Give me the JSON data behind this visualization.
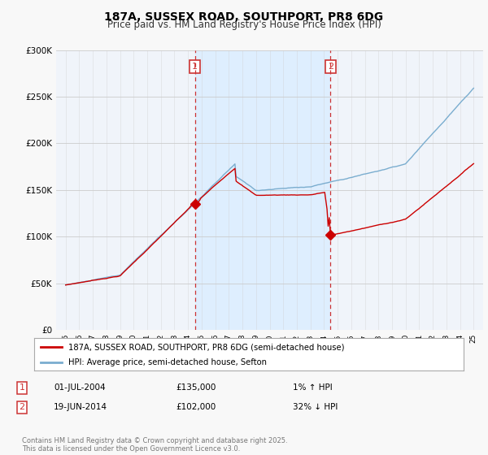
{
  "title_line1": "187A, SUSSEX ROAD, SOUTHPORT, PR8 6DG",
  "title_line2": "Price paid vs. HM Land Registry's House Price Index (HPI)",
  "background_color": "#f8f8f8",
  "plot_bg_color": "#f0f4fa",
  "ylim": [
    0,
    300000
  ],
  "yticks": [
    0,
    50000,
    100000,
    150000,
    200000,
    250000,
    300000
  ],
  "ytick_labels": [
    "£0",
    "£50K",
    "£100K",
    "£150K",
    "£200K",
    "£250K",
    "£300K"
  ],
  "sale1_x": 2004.5,
  "sale1_price": 135000,
  "sale2_x": 2014.47,
  "sale2_price": 102000,
  "legend_line1": "187A, SUSSEX ROAD, SOUTHPORT, PR8 6DG (semi-detached house)",
  "legend_line2": "HPI: Average price, semi-detached house, Sefton",
  "annotation1": [
    "1",
    "01-JUL-2004",
    "£135,000",
    "1% ↑ HPI"
  ],
  "annotation2": [
    "2",
    "19-JUN-2014",
    "£102,000",
    "32% ↓ HPI"
  ],
  "footer": "Contains HM Land Registry data © Crown copyright and database right 2025.\nThis data is licensed under the Open Government Licence v3.0.",
  "line_color_red": "#cc0000",
  "line_color_blue": "#7aadcf",
  "vline_color": "#cc3333",
  "span_color": "#ddeeff",
  "grid_color": "#cccccc"
}
